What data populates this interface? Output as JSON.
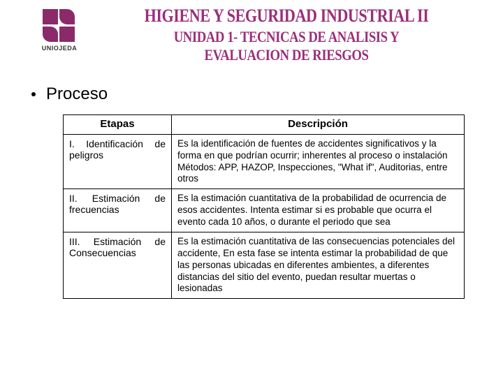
{
  "header": {
    "logo_text": "UNIOJEDA",
    "title1": "HIGIENE Y SEGURIDAD INDUSTRIAL II",
    "title2": "UNIDAD 1- TECNICAS DE ANALISIS Y EVALUACION DE RIESGOS"
  },
  "section_title": "Proceso",
  "table": {
    "header_col1": "Etapas",
    "header_col2": "Descripción",
    "rows": [
      {
        "etapa": "I. Identificación de peligros",
        "desc": "Es la identificación de fuentes de accidentes significativos y la forma en que podrían ocurrir; inherentes al proceso o instalación\nMétodos: APP, HAZOP, Inspecciones, \"What if\", Auditorias, entre otros"
      },
      {
        "etapa": "II. Estimación de frecuencias",
        "desc": "Es la estimación cuantitativa de la probabilidad de ocurrencia de esos accidentes.\nIntenta estimar si es probable que ocurra el evento cada 10 años, o durante el periodo que sea"
      },
      {
        "etapa": "III. Estimación de Consecuencias",
        "desc": "Es la estimación cuantitativa de las consecuencias potenciales del accidente, En esta fase se intenta estimar la probabilidad de que las personas ubicadas en diferentes ambientes, a diferentes distancias del sitio del evento, puedan resultar muertas o lesionadas"
      }
    ]
  },
  "colors": {
    "brand": "#8b2a6b",
    "title": "#9c2d7a"
  }
}
